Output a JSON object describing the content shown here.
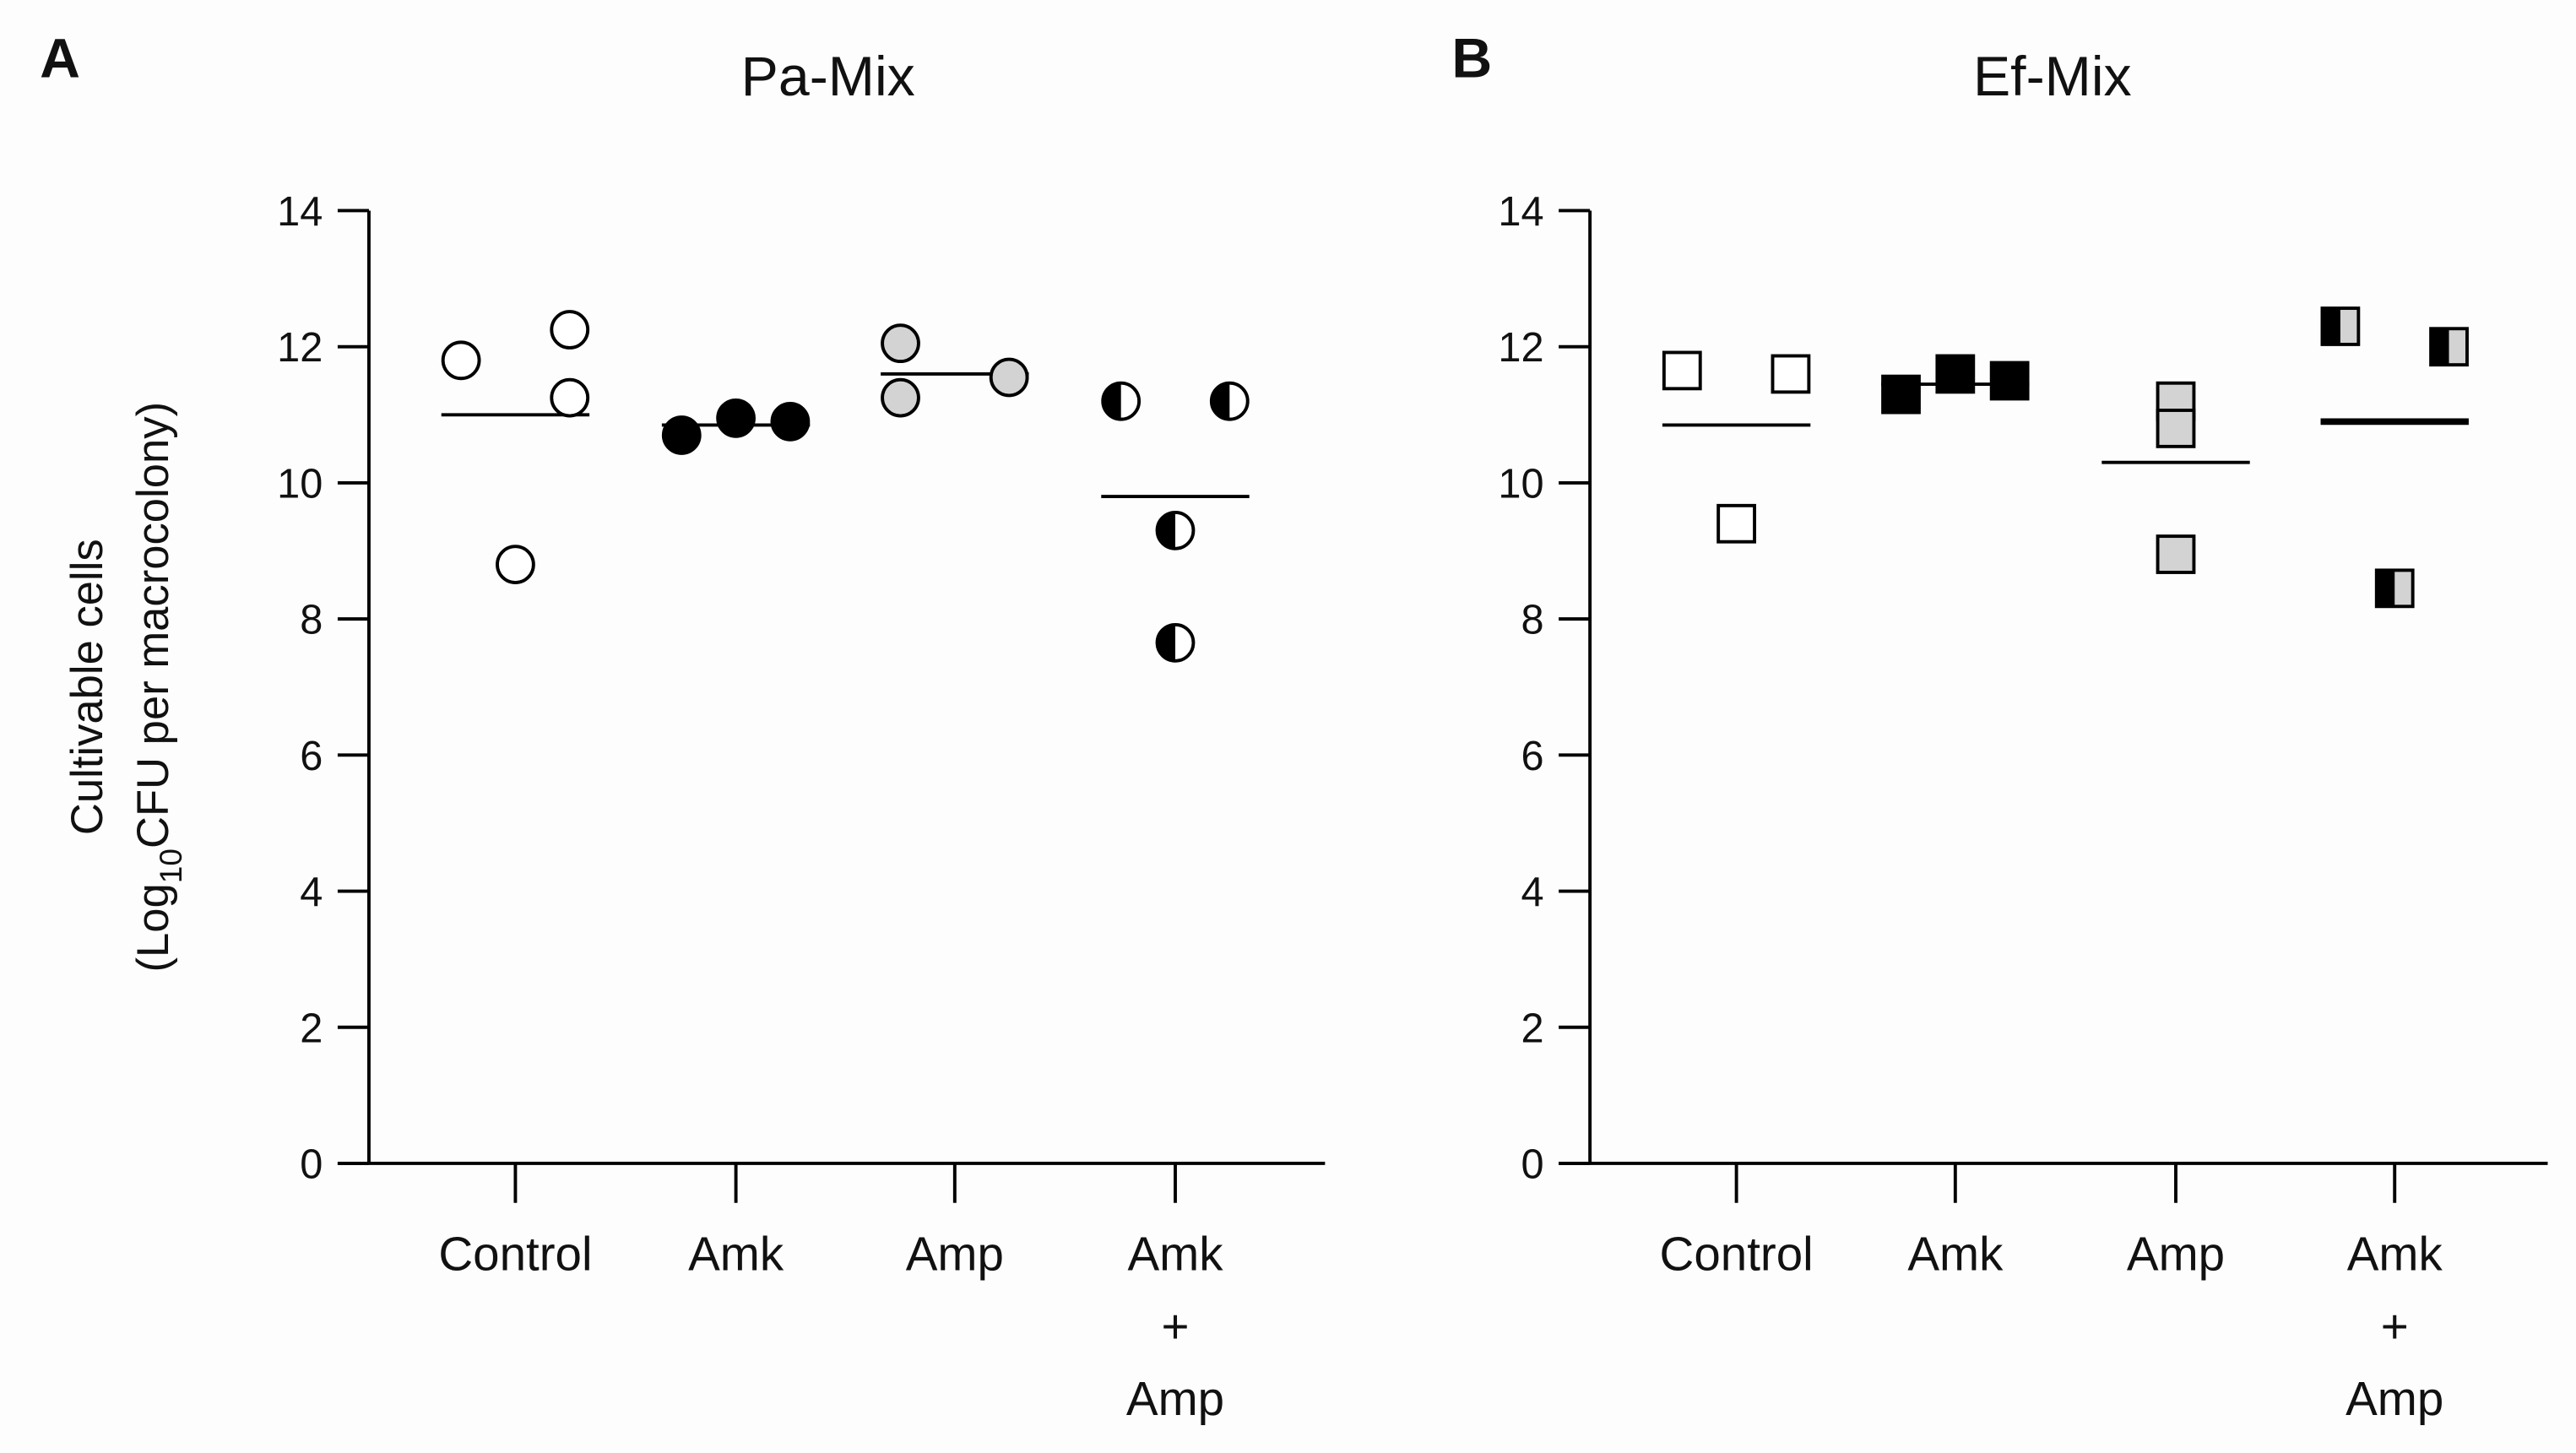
{
  "chart_data": [
    {
      "type": "dotplot",
      "letter": "A",
      "title": "Pa-Mix",
      "ylabel": {
        "line1": "Cultivable cells",
        "line2": [
          "(Log",
          "10",
          "CFU per macrocolony)"
        ]
      },
      "categories": [
        "Control",
        "Amk",
        "Amp",
        [
          "Amk",
          "+",
          "Amp"
        ]
      ],
      "ylim": [
        0,
        14
      ],
      "yticks": [
        0,
        2,
        4,
        6,
        8,
        10,
        12,
        14
      ],
      "groups": [
        {
          "marker": "circle",
          "fill": "#ffffff",
          "values": [
            11.8,
            12.25,
            11.25,
            8.8
          ],
          "mean": 11.0
        },
        {
          "marker": "circle",
          "fill": "#000000",
          "values": [
            10.7,
            10.95,
            10.9
          ],
          "mean": 10.85
        },
        {
          "marker": "circle",
          "fill": "#d3d3d3",
          "values": [
            12.05,
            11.25,
            11.55
          ],
          "mean": 11.6
        },
        {
          "marker": "circle",
          "fill": "#000000",
          "fill2": "#ffffff",
          "values": [
            11.2,
            11.2,
            9.3,
            7.65
          ],
          "mean": 9.8
        }
      ]
    },
    {
      "type": "dotplot",
      "letter": "B",
      "title": "Ef-Mix",
      "categories": [
        "Control",
        "Amk",
        "Amp",
        [
          "Amk",
          "+",
          "Amp"
        ]
      ],
      "ylim": [
        0,
        14
      ],
      "yticks": [
        0,
        2,
        4,
        6,
        8,
        10,
        12,
        14
      ],
      "groups": [
        {
          "marker": "square",
          "fill": "#ffffff",
          "values": [
            11.65,
            11.6,
            9.4
          ],
          "mean": 10.85
        },
        {
          "marker": "square",
          "fill": "#000000",
          "values": [
            11.3,
            11.6,
            11.5
          ],
          "mean": 11.45
        },
        {
          "marker": "square",
          "fill": "#d3d3d3",
          "values": [
            11.2,
            10.8,
            8.95
          ],
          "mean": 10.3
        },
        {
          "marker": "square",
          "fill": "#000000",
          "fill2": "#d3d3d3",
          "values": [
            12.3,
            12.0,
            8.45
          ],
          "mean": 10.9,
          "bold_mean": true
        }
      ]
    }
  ]
}
